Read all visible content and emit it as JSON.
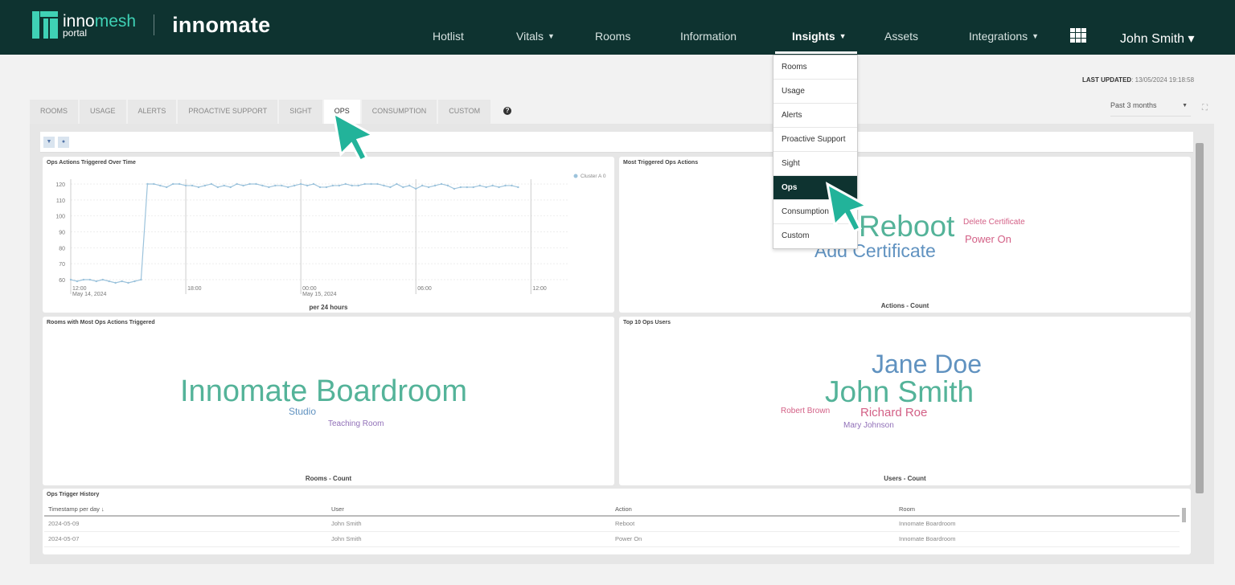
{
  "header": {
    "logo_text_inno": "inno",
    "logo_text_mesh": "mesh",
    "logo_sub": "portal",
    "partner": "innomate",
    "nav": [
      {
        "label": "Hotlist",
        "dropdown": false,
        "active": false
      },
      {
        "label": "Vitals",
        "dropdown": true,
        "active": false
      },
      {
        "label": "Rooms",
        "dropdown": false,
        "active": false
      },
      {
        "label": "Information",
        "dropdown": false,
        "active": false
      },
      {
        "label": "Insights",
        "dropdown": true,
        "active": true
      },
      {
        "label": "Assets",
        "dropdown": false,
        "active": false
      },
      {
        "label": "Integrations",
        "dropdown": true,
        "active": false
      }
    ],
    "apps_icon": "grid-icon",
    "user": "John Smith ▾"
  },
  "insights_menu": {
    "items": [
      "Rooms",
      "Usage",
      "Alerts",
      "Proactive Support",
      "Sight",
      "Ops",
      "Consumption",
      "Custom"
    ],
    "selected": "Ops"
  },
  "last_updated": {
    "label": "LAST UPDATED",
    "value": ": 13/05/2024 19:18:58"
  },
  "tabs": {
    "items": [
      "ROOMS",
      "USAGE",
      "ALERTS",
      "PROACTIVE SUPPORT",
      "SIGHT",
      "OPS",
      "CONSUMPTION",
      "CUSTOM"
    ],
    "active": "OPS",
    "help": "?"
  },
  "range": {
    "value": "Past 3 months"
  },
  "colors": {
    "topbar": "#0e3330",
    "accent": "#3fd1b5",
    "line": "#9cc3dc",
    "green": "#54b399",
    "blue": "#6092c0",
    "pink": "#d36086",
    "purple": "#9170b8"
  },
  "chart_data": {
    "type": "line",
    "title": "Ops Actions Triggered Over Time",
    "xlabel": "per 24 hours",
    "ylim": [
      58,
      122
    ],
    "yticks": [
      60,
      70,
      80,
      90,
      100,
      110,
      120
    ],
    "xticks": [
      {
        "t": "2024-05-14T12:00",
        "label": "12:00",
        "sub": "May 14, 2024"
      },
      {
        "t": "2024-05-14T18:00",
        "label": "18:00",
        "sub": ""
      },
      {
        "t": "2024-05-15T00:00",
        "label": "00:00",
        "sub": "May 15, 2024"
      },
      {
        "t": "2024-05-15T06:00",
        "label": "06:00",
        "sub": ""
      },
      {
        "t": "2024-05-15T12:00",
        "label": "12:00",
        "sub": ""
      }
    ],
    "xlim": [
      "2024-05-14T12:00",
      "2024-05-15T14:00"
    ],
    "legend": {
      "position": "top-right",
      "entries": [
        {
          "name": "Cluster A",
          "value": "0"
        }
      ]
    },
    "series": [
      {
        "name": "Cluster A",
        "start": "2024-05-14T12:00",
        "interval_minutes": 20,
        "values": [
          60,
          59,
          60,
          60,
          59,
          60,
          59,
          58,
          59,
          58,
          59,
          60,
          120,
          120,
          119,
          118,
          120,
          120,
          119,
          119,
          118,
          119,
          120,
          118,
          119,
          118,
          120,
          119,
          120,
          120,
          119,
          118,
          119,
          119,
          118,
          119,
          120,
          119,
          120,
          118,
          118,
          119,
          119,
          120,
          119,
          119,
          120,
          120,
          120,
          119,
          118,
          120,
          118,
          119,
          117,
          119,
          118,
          119,
          120,
          119,
          117,
          118,
          118,
          118,
          119,
          118,
          119,
          118,
          119,
          119,
          118
        ]
      }
    ],
    "grid": true
  },
  "actions_cloud": {
    "title": "Most Triggered Ops Actions",
    "footer": "Actions - Count",
    "words": [
      {
        "text": "Reboot",
        "color": "#54b399",
        "rank": 1
      },
      {
        "text": "Add Certificate",
        "color": "#6092c0",
        "rank": 2
      },
      {
        "text": "Power On",
        "color": "#d36086",
        "rank": 3
      },
      {
        "text": "Delete Certificate",
        "color": "#d36086",
        "rank": 4
      }
    ]
  },
  "rooms_cloud": {
    "title": "Rooms with Most Ops Actions Triggered",
    "footer": "Rooms - Count",
    "words": [
      {
        "text": "Innomate Boardroom",
        "color": "#54b399",
        "rank": 1
      },
      {
        "text": "Studio",
        "color": "#6092c0",
        "rank": 2
      },
      {
        "text": "Teaching Room",
        "color": "#9170b8",
        "rank": 3
      }
    ]
  },
  "users_cloud": {
    "title": "Top 10 Ops Users",
    "footer": "Users - Count",
    "words": [
      {
        "text": "Jane Doe",
        "color": "#6092c0",
        "rank": 2
      },
      {
        "text": "John Smith",
        "color": "#54b399",
        "rank": 1
      },
      {
        "text": "Richard Roe",
        "color": "#d36086",
        "rank": 3
      },
      {
        "text": "Robert Brown",
        "color": "#d36086",
        "rank": 4
      },
      {
        "text": "Mary Johnson",
        "color": "#9170b8",
        "rank": 5
      }
    ]
  },
  "history": {
    "title": "Ops Trigger History",
    "columns": [
      "Timestamp per day ↓",
      "User",
      "Action",
      "Room"
    ],
    "rows": [
      [
        "2024-05-09",
        "John Smith",
        "Reboot",
        "Innomate Boardroom"
      ],
      [
        "2024-05-07",
        "John Smith",
        "Power On",
        "Innomate Boardroom"
      ]
    ]
  }
}
